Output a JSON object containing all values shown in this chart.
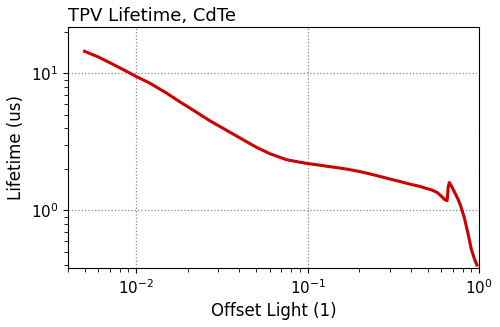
{
  "title": "TPV Lifetime, CdTe",
  "xlabel": "Offset Light (1)",
  "ylabel": "Lifetime (us)",
  "line_color": "#cc0000",
  "line_width": 2.2,
  "xlim": [
    0.004,
    1.0
  ],
  "ylim": [
    0.38,
    22
  ],
  "x": [
    0.005,
    0.006,
    0.007,
    0.008,
    0.009,
    0.01,
    0.012,
    0.015,
    0.018,
    0.022,
    0.027,
    0.033,
    0.04,
    0.05,
    0.06,
    0.075,
    0.09,
    0.1,
    0.115,
    0.13,
    0.15,
    0.17,
    0.19,
    0.21,
    0.23,
    0.26,
    0.3,
    0.35,
    0.4,
    0.45,
    0.49,
    0.51,
    0.53,
    0.55,
    0.57,
    0.59,
    0.61,
    0.63,
    0.65,
    0.66,
    0.67,
    0.68,
    0.7,
    0.72,
    0.75,
    0.78,
    0.82,
    0.86,
    0.9,
    0.94,
    0.97
  ],
  "y": [
    14.5,
    13.2,
    12.0,
    11.0,
    10.2,
    9.5,
    8.5,
    7.2,
    6.2,
    5.3,
    4.5,
    3.9,
    3.4,
    2.9,
    2.6,
    2.35,
    2.25,
    2.2,
    2.15,
    2.1,
    2.05,
    2.0,
    1.95,
    1.9,
    1.85,
    1.78,
    1.7,
    1.62,
    1.55,
    1.5,
    1.45,
    1.43,
    1.41,
    1.38,
    1.35,
    1.3,
    1.25,
    1.2,
    1.18,
    1.5,
    1.6,
    1.55,
    1.45,
    1.35,
    1.22,
    1.08,
    0.88,
    0.68,
    0.52,
    0.44,
    0.4
  ],
  "grid_color": "#888888",
  "grid_linestyle": ":",
  "grid_linewidth": 0.9,
  "title_fontsize": 13,
  "label_fontsize": 12,
  "tick_fontsize": 11
}
